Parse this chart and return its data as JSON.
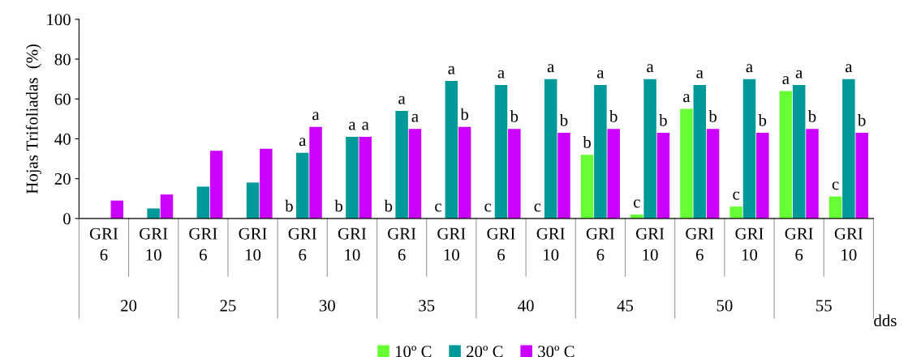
{
  "chart_data": {
    "type": "bar",
    "ylabel": "Hojas Trifoliadas  (%)",
    "xlabel": "dds",
    "categories": [
      "GRI\n6",
      "GRI\n10",
      "GRI\n6",
      "GRI\n10",
      "GRI\n6",
      "GRI\n10",
      "GRI\n6",
      "GRI\n10",
      "GRI\n6",
      "GRI\n10",
      "GRI\n6",
      "GRI\n10",
      "GRI\n6",
      "GRI\n10",
      "GRI\n6",
      "GRI\n10"
    ],
    "annotations": [
      "20",
      "25",
      "30",
      "35",
      "40",
      "45",
      "50",
      "55"
    ],
    "series": [
      {
        "name": "10º C",
        "color": "#66ff33",
        "values": [
          0,
          0,
          0,
          0,
          0,
          0,
          0,
          0,
          0,
          0,
          32,
          2,
          55,
          6,
          64,
          11
        ],
        "value_labels": [
          null,
          null,
          null,
          null,
          "b",
          "b",
          "b",
          "c",
          "c",
          "c",
          "b",
          "c",
          "a",
          "c",
          "a",
          "c"
        ]
      },
      {
        "name": "20º C",
        "color": "#009999",
        "values": [
          0,
          5,
          16,
          18,
          33,
          41,
          54,
          69,
          67,
          70,
          67,
          70,
          67,
          70,
          67,
          70
        ],
        "value_labels": [
          null,
          null,
          null,
          null,
          "a",
          "a",
          "a",
          "a",
          "a",
          "a",
          "a",
          "a",
          "a",
          "a",
          "a",
          "a"
        ]
      },
      {
        "name": "30º C",
        "color": "#cc00ff",
        "values": [
          9,
          12,
          34,
          35,
          46,
          41,
          45,
          46,
          45,
          43,
          45,
          43,
          45,
          43,
          45,
          43
        ],
        "value_labels": [
          null,
          null,
          null,
          null,
          "a",
          "a",
          "a",
          "b",
          "b",
          "b",
          "b",
          "b",
          "b",
          "b",
          "b",
          "b"
        ]
      }
    ],
    "ylim": [
      0,
      100
    ],
    "yticks": [
      0,
      20,
      40,
      60,
      80,
      100
    ],
    "grid": false,
    "legend": "bottom"
  }
}
